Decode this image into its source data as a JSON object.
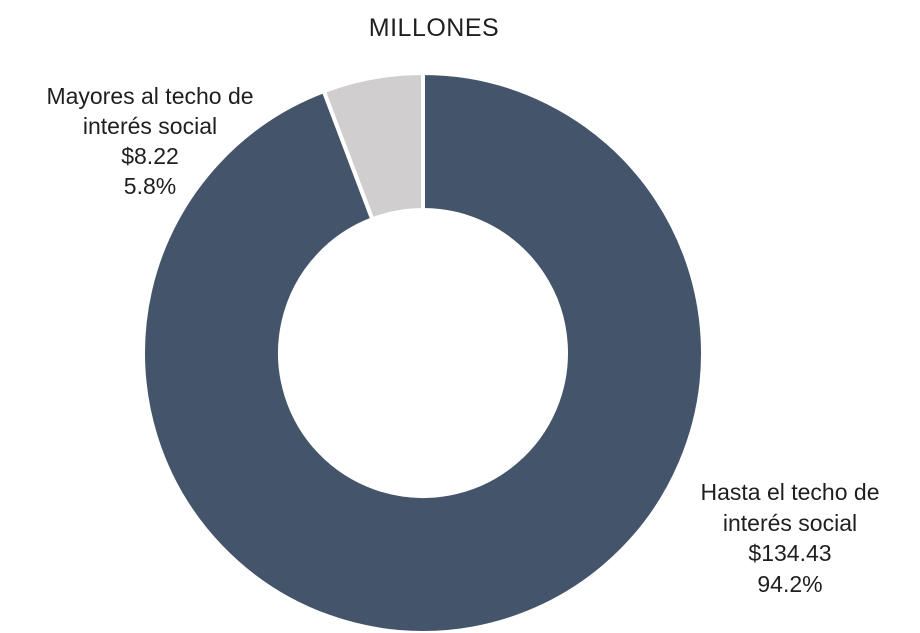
{
  "chart_data": {
    "type": "pie",
    "style": "donut",
    "title": "MILLONES",
    "slices": [
      {
        "label_lines": [
          "Hasta el techo de",
          "interés social"
        ],
        "value_label": "$134.43",
        "percent_label": "94.2%",
        "value": 134.43,
        "percent": 94.2,
        "color": "#44546a"
      },
      {
        "label_lines": [
          "Mayores al techo de",
          "interés social"
        ],
        "value_label": "$8.22",
        "percent_label": "5.8%",
        "value": 8.22,
        "percent": 5.8,
        "color": "#d0cece"
      }
    ]
  }
}
